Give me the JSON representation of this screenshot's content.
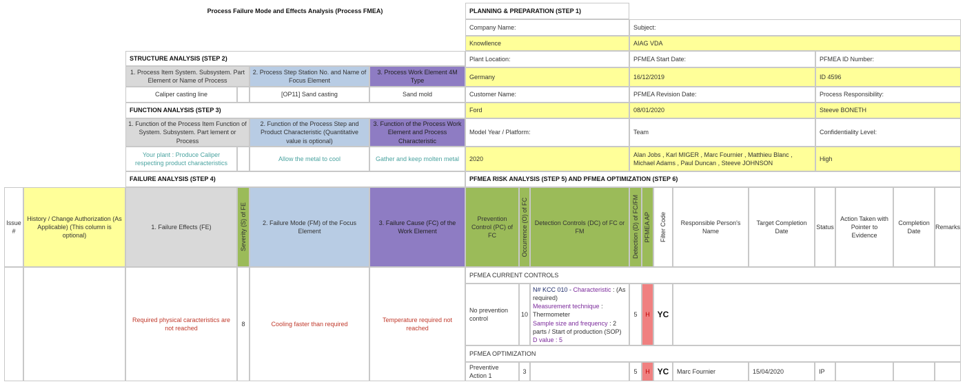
{
  "title": "Process Failure Mode and Effects Analysis (Process FMEA)",
  "planning": {
    "header": "PLANNING & PREPARATION (STEP 1)",
    "company_label": "Company Name:",
    "company_value": "Knowllence",
    "subject_label": "Subject:",
    "subject_value": "AIAG VDA",
    "plant_label": "Plant Location:",
    "plant_value": "Germany",
    "start_label": "PFMEA Start Date:",
    "start_value": "16/12/2019",
    "id_label": "PFMEA ID Number:",
    "id_value": "ID 4596",
    "customer_label": "Customer Name:",
    "customer_value": "Ford",
    "revision_label": "PFMEA Revision Date:",
    "revision_value": "08/01/2020",
    "responsibility_label": "Process Responsibility:",
    "responsibility_value": "Steeve BONETH",
    "model_label": "Model Year / Platform:",
    "model_value": "2020",
    "team_label": "Team",
    "team_value": "Alan Jobs , Karl MIGER , Marc Fournier , Matthieu Blanc , Michael Adams , Paul Duncan , Steeve JOHNSON",
    "confidentiality_label": "Confidentiality Level:",
    "confidentiality_value": "High"
  },
  "structure": {
    "header": "STRUCTURE ANALYSIS (STEP 2)",
    "col1": "1. Process Item System. Subsystem. Part Element or Name of Process",
    "col2": "2. Process Step Station No. and Name of Focus Element",
    "col3": "3. Process Work Element 4M Type",
    "val1": "Caliper casting line",
    "val2": "[OP11] Sand casting",
    "val3": "Sand mold"
  },
  "function": {
    "header": "FUNCTION ANALYSIS (STEP 3)",
    "col1": "1. Function of the Process Item Function of System. Subsystem. Part lement or Process",
    "col2": "2. Function of the Process Step and Product Characteristic (Quantitative value is optional)",
    "col3": "3. Function of the Process Work Element and Process Characteristic",
    "val1": "Your plant : Produce Caliper respecting product characteristics",
    "val2": "Allow the metal to cool",
    "val3": "Gather and keep molten metal"
  },
  "failure": {
    "header": "FAILURE ANALYSIS (STEP 4)",
    "issue": "Issue #",
    "history": "History / Change Authorization (As Applicable) (This column is optional)",
    "fe": "1. Failure Effects (FE)",
    "severity": "Severity (S) of FE",
    "fm": "2. Failure Mode (FM) of the Focus Element",
    "fc": "3. Failure Cause (FC) of the Work Element",
    "fe_val": "Required physical caracteristics are not reached",
    "severity_val": "8",
    "fm_val": "Cooling faster than required",
    "fc_val": "Temperature required not reached"
  },
  "risk": {
    "header": "PFMEA RISK ANALYSIS (STEP 5) AND PFMEA OPTIMIZATION (STEP 6)",
    "pc": "Prevention Control (PC) of FC",
    "occurrence": "Occurrence (O) of FC",
    "dc": "Detection Controls (DC) of FC or FM",
    "detection": "Detection (D) of FC/FM",
    "ap": "PFMEA AP",
    "filter": "Filter Code",
    "responsible": "Responsible Person's Name",
    "target": "Target Completion Date",
    "status": "Status",
    "action": "Action Taken with Pointer to Evidence",
    "completion": "Completion Date",
    "remarks": "Remarks"
  },
  "current": {
    "header": "PFMEA CURRENT CONTROLS",
    "pc_val": "No prevention control",
    "occ_val": "10",
    "dc_l1a": "N# KCC 010 - ",
    "dc_l1b": "Characteristic",
    "dc_l1c": " : (As required)",
    "dc_l2a": "Measurement technique",
    "dc_l2b": " : Thermometer",
    "dc_l3a": "Sample size and frequency",
    "dc_l3b": " : 2 parts / Start of production (SOP)",
    "dc_l4": "D value : 5",
    "det_val": "5",
    "ap_val": "H",
    "filter_val": "YC"
  },
  "optimization": {
    "header": "PFMEA OPTIMIZATION",
    "pc_val": "Preventive Action 1",
    "occ_val": "3",
    "det_val": "5",
    "ap_val": "H",
    "filter_val": "YC",
    "responsible_val": "Marc Fournier",
    "target_val": "15/04/2020",
    "status_val": "IP"
  },
  "colors": {
    "yellow": "#ffff99",
    "gray": "#d9d9d9",
    "blue": "#b8cce4",
    "purple": "#8e7cc3",
    "green": "#9bbb59",
    "red": "#f08080"
  }
}
